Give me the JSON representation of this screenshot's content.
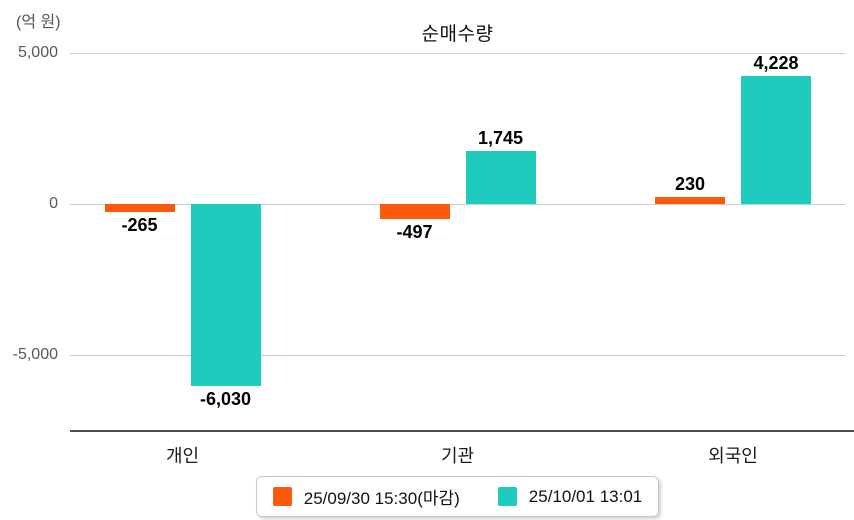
{
  "chart": {
    "unit_label": "(억 원)",
    "title": "순매수량"
  },
  "colors": {
    "series1": "#fb5a0d",
    "series2": "#1fcbbc",
    "gridline": "#cccccc",
    "axis_line": "#4d4d4d",
    "tick_text": "#595959",
    "value_text": "#000000"
  },
  "chart_data": {
    "type": "bar",
    "title": "순매수량",
    "ylabel": "(억 원)",
    "categories": [
      "개인",
      "기관",
      "외국인"
    ],
    "series": [
      {
        "name": "25/09/30 15:30(마감)",
        "color": "#fb5a0d",
        "values": [
          -265,
          -497,
          230
        ],
        "value_labels": [
          "-265",
          "-497",
          "230"
        ]
      },
      {
        "name": "25/10/01 13:01",
        "color": "#1fcbbc",
        "values": [
          -6030,
          1745,
          4228
        ],
        "value_labels": [
          "-6,030",
          "1,745",
          "4,228"
        ]
      }
    ],
    "yticks": [
      5000,
      0,
      -5000
    ],
    "ytick_labels": [
      "5,000",
      "0",
      "-5,000"
    ],
    "ylim": [
      -7500,
      5300
    ],
    "grid": true,
    "legend_position": "bottom"
  }
}
